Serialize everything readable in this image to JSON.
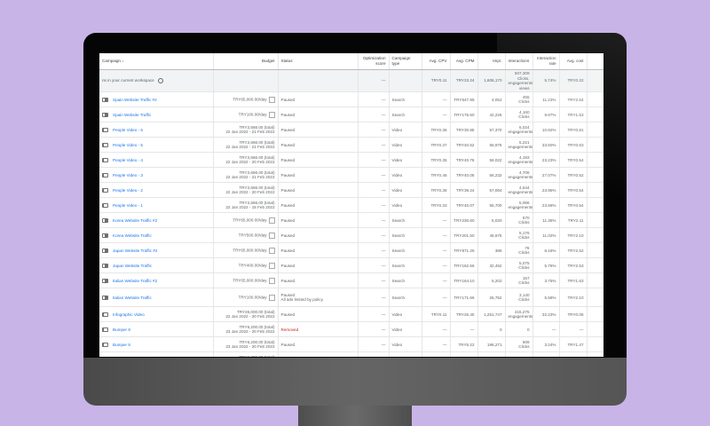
{
  "colors": {
    "background": "#c9b4e8",
    "link": "#1a73e8",
    "removed": "#c5221f"
  },
  "header": [
    "Campaign ↓",
    "Budget",
    "Status",
    "Optimization score",
    "Campaign type",
    "Avg. CPV",
    "Avg. CPM",
    "Impr.",
    "Interactions",
    "Interaction rate",
    "Avg. cost"
  ],
  "total": {
    "label": "ns in your current workspace",
    "opt": "—",
    "type": "",
    "cpv": "TRY0.11",
    "cpm": "TRY23.24",
    "impr": "1,606,170",
    "interactions": "507,309 Clicks, engagements, views",
    "rate": "5.74%",
    "cost": "TRY0.22"
  },
  "rows": [
    {
      "icon": "search",
      "name": "Spain Website Traffic #2",
      "budget": "TRY65,000.00/day",
      "dates": "",
      "status": "Paused",
      "note": "",
      "opt": "—",
      "type": "Search",
      "cpv": "—",
      "cpm": "TRY547.95",
      "impr": "4,052",
      "int": "455",
      "int_unit": "Clicks",
      "rate": "11.23%",
      "cost": "TRY2.54"
    },
    {
      "icon": "search",
      "name": "Spain Website Traffic",
      "budget": "TRY100.00/day",
      "dates": "",
      "status": "Paused",
      "note": "",
      "opt": "—",
      "type": "Search",
      "cpv": "—",
      "cpm": "TRY175.50",
      "impr": "42,226",
      "int": "4,160",
      "int_unit": "Clicks",
      "rate": "9.87%",
      "cost": "TRY1.53"
    },
    {
      "icon": "video",
      "name": "People Video - 6",
      "budget": "TRY2,666.00 (total)",
      "dates": "22 Jan 2022 - 21 Feb 2022",
      "status": "Paused",
      "note": "",
      "opt": "—",
      "type": "Video",
      "cpv": "TRY0.36",
      "cpm": "TRY30.85",
      "impr": "57,370",
      "int": "6,024",
      "int_unit": "engagements",
      "rate": "10.82%",
      "cost": "TRY0.81"
    },
    {
      "icon": "video",
      "name": "People Video - 5",
      "budget": "TRY2,666.00 (total)",
      "dates": "22 Jan 2022 - 21 Feb 2022",
      "status": "Paused",
      "note": "",
      "opt": "—",
      "type": "Video",
      "cpv": "TRY0.37",
      "cpm": "TRY40.52",
      "impr": "55,975",
      "int": "5,221",
      "int_unit": "engagements",
      "rate": "33.50%",
      "cost": "TRY0.63"
    },
    {
      "icon": "video",
      "name": "People Video - 4",
      "budget": "TRY2,666.00 (total)",
      "dates": "22 Jan 2022 - 20 Feb 2022",
      "status": "Paused",
      "note": "",
      "opt": "—",
      "type": "Video",
      "cpv": "TRY0.35",
      "cpm": "TRY40.76",
      "impr": "56,022",
      "int": "4,193",
      "int_unit": "engagements",
      "rate": "23.23%",
      "cost": "TRY0.54"
    },
    {
      "icon": "video",
      "name": "People Video - 3",
      "budget": "TRY2,666.00 (total)",
      "dates": "22 Jan 2022 - 21 Feb 2022",
      "status": "Paused",
      "note": "",
      "opt": "—",
      "type": "Video",
      "cpv": "TRY0.48",
      "cpm": "TRY40.05",
      "impr": "56,232",
      "int": "4,706",
      "int_unit": "engagements",
      "rate": "27.07%",
      "cost": "TRY0.52"
    },
    {
      "icon": "video",
      "name": "People Video - 2",
      "budget": "TRY2,666.00 (total)",
      "dates": "22 Jan 2022 - 20 Feb 2022",
      "status": "Paused",
      "note": "",
      "opt": "—",
      "type": "Video",
      "cpv": "TRY0.36",
      "cpm": "TRY39.24",
      "impr": "57,064",
      "int": "4,544",
      "int_unit": "engagements",
      "rate": "23.95%",
      "cost": "TRY0.54"
    },
    {
      "icon": "video",
      "name": "People Video - 1",
      "budget": "TRY2,666.00 (total)",
      "dates": "22 Jan 2022 - 15 Feb 2022",
      "status": "Paused",
      "note": "",
      "opt": "—",
      "type": "Video",
      "cpv": "TRY0.33",
      "cpm": "TRY40.07",
      "impr": "55,700",
      "int": "5,066",
      "int_unit": "engagements",
      "rate": "23.66%",
      "cost": "TRY0.54"
    },
    {
      "icon": "search",
      "name": "Korea Website Traffic #2",
      "budget": "TRY65,000.00/day",
      "dates": "",
      "status": "Paused",
      "note": "",
      "opt": "—",
      "type": "Search",
      "cpv": "—",
      "cpm": "TRY230.60",
      "impr": "5,020",
      "int": "570",
      "int_unit": "Clicks",
      "rate": "11.35%",
      "cost": "TRY2.11"
    },
    {
      "icon": "search",
      "name": "Korea Website Traffic",
      "budget": "TRY500.00/day",
      "dates": "",
      "status": "Paused",
      "note": "",
      "opt": "—",
      "type": "Search",
      "cpv": "—",
      "cpm": "TRY201.50",
      "impr": "46,675",
      "int": "5,176",
      "int_unit": "Clicks",
      "rate": "11.02%",
      "cost": "TRY2.10"
    },
    {
      "icon": "search",
      "name": "Japan Website Traffic #2",
      "budget": "TRY65,000.00/day",
      "dates": "",
      "status": "Paused",
      "note": "",
      "opt": "—",
      "type": "Search",
      "cpv": "—",
      "cpm": "TRY971.25",
      "impr": "386",
      "int": "76",
      "int_unit": "Clicks",
      "rate": "6.16%",
      "cost": "TRY2.52"
    },
    {
      "icon": "search",
      "name": "Japan Website Traffic",
      "budget": "TRY400.00/day",
      "dates": "",
      "status": "Paused",
      "note": "",
      "opt": "—",
      "type": "Search",
      "cpv": "—",
      "cpm": "TRY162.56",
      "impr": "32,452",
      "int": "5,075",
      "int_unit": "Clicks",
      "rate": "5.76%",
      "cost": "TRY2.53"
    },
    {
      "icon": "search",
      "name": "Italian Website Traffic #2",
      "budget": "TRY65,000.00/day",
      "dates": "",
      "status": "Paused",
      "note": "",
      "opt": "—",
      "type": "Search",
      "cpv": "—",
      "cpm": "TRY164.10",
      "impr": "5,202",
      "int": "157",
      "int_unit": "Clicks",
      "rate": "3.75%",
      "cost": "TRY1.63"
    },
    {
      "icon": "search",
      "name": "Italian Website Traffic",
      "budget": "TRY100.00/day",
      "dates": "",
      "status": "Paused",
      "note": "All ads limited by policy",
      "opt": "—",
      "type": "Search",
      "cpv": "—",
      "cpm": "TRY171.66",
      "impr": "26,752",
      "int": "3,140",
      "int_unit": "Clicks",
      "rate": "5.58%",
      "cost": "TRY2.10"
    },
    {
      "icon": "video",
      "name": "Infographic Video",
      "budget": "TRY35,000.00 (total)",
      "dates": "22 Jan 2022 - 20 Feb 2022",
      "status": "Paused",
      "note": "",
      "opt": "—",
      "type": "Video",
      "cpv": "TRY0.11",
      "cpm": "TRY26.40",
      "impr": "1,251,747",
      "int": "415,275",
      "int_unit": "engagements",
      "rate": "32.23%",
      "cost": "TRY0.06"
    },
    {
      "icon": "video",
      "name": "Bumper 8",
      "budget": "TRY6,200.00 (total)",
      "dates": "23 Jan 2022 - 20 Feb 2022",
      "status": "Removed",
      "note": "",
      "opt": "—",
      "type": "Video",
      "cpv": "—",
      "cpm": "—",
      "impr": "0",
      "int": "0",
      "int_unit": "",
      "rate": "—",
      "cost": "—"
    },
    {
      "icon": "video",
      "name": "Bumper 6",
      "budget": "TRY6,200.00 (total)",
      "dates": "23 Jan 2022 - 20 Feb 2022",
      "status": "Paused",
      "note": "",
      "opt": "—",
      "type": "Video",
      "cpv": "—",
      "cpm": "TRY5.22",
      "impr": "196,271",
      "int": "509",
      "int_unit": "Clicks",
      "rate": "3.24%",
      "cost": "TRY1.47"
    },
    {
      "icon": "video",
      "name": "Bumper 7",
      "budget": "TRY6,200.00 (total)",
      "dates": "23 Jan 2022 - 21 Feb 2022",
      "status": "Removed",
      "note": "",
      "opt": "—",
      "type": "Video",
      "cpv": "—",
      "cpm": "—",
      "impr": "0",
      "int": "0",
      "int_unit": "",
      "rate": "—",
      "cost": "—"
    },
    {
      "icon": "video",
      "name": "",
      "budget": "TRY6,200.00 (total)",
      "dates": "",
      "status": "",
      "note": "",
      "opt": "",
      "type": "",
      "cpv": "",
      "cpm": "",
      "impr": "",
      "int": "509",
      "int_unit": "",
      "rate": "",
      "cost": ""
    }
  ]
}
